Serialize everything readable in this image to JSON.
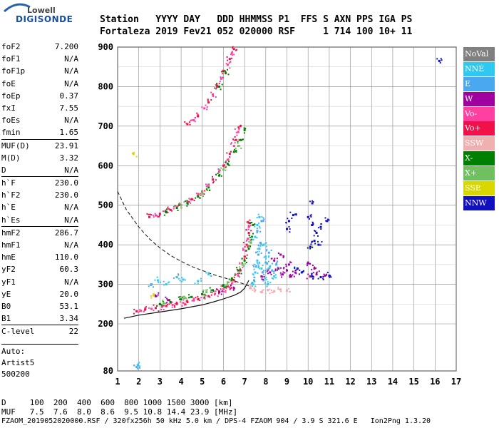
{
  "logo": {
    "line1": "Lowell",
    "line2": "DIGISONDE"
  },
  "header": {
    "row1": "Station   YYYY DAY   DDD HHMMSS P1  FFS S AXN PPS IGA PS",
    "row2": "Fortaleza 2019 Fev21 052 020000 RSF     1 714 100 10+ 11"
  },
  "params": [
    {
      "name": "foF2",
      "value": "7.200"
    },
    {
      "name": "foF1",
      "value": "N/A"
    },
    {
      "name": "foF1p",
      "value": "N/A"
    },
    {
      "name": "foE",
      "value": "N/A"
    },
    {
      "name": "foEp",
      "value": "0.37"
    },
    {
      "name": "fxI",
      "value": "7.55"
    },
    {
      "name": "foEs",
      "value": "N/A"
    },
    {
      "name": "fmin",
      "value": "1.65"
    },
    {
      "name": "MUF(D)",
      "value": "23.91",
      "sep": true
    },
    {
      "name": "M(D)",
      "value": "3.32"
    },
    {
      "name": "D",
      "value": "N/A"
    },
    {
      "name": "h`F",
      "value": "230.0",
      "sep": true
    },
    {
      "name": "h`F2",
      "value": "230.0"
    },
    {
      "name": "h`E",
      "value": "N/A"
    },
    {
      "name": "h`Es",
      "value": "N/A"
    },
    {
      "name": "hmF2",
      "value": "286.7",
      "sep": true
    },
    {
      "name": "hmF1",
      "value": "N/A"
    },
    {
      "name": "hmE",
      "value": "110.0"
    },
    {
      "name": "yF2",
      "value": "60.3"
    },
    {
      "name": "yF1",
      "value": "N/A"
    },
    {
      "name": "yE",
      "value": "20.0"
    },
    {
      "name": "B0",
      "value": "53.1"
    },
    {
      "name": "B1",
      "value": "3.34"
    },
    {
      "name": "C-level",
      "value": "22",
      "sep": true
    }
  ],
  "auto": {
    "label": "Auto:",
    "artist": "Artist5",
    "version": "500200"
  },
  "legend": [
    {
      "label": "NoVal",
      "color": "#808080"
    },
    {
      "label": "NNE",
      "color": "#2ec9f0"
    },
    {
      "label": "E",
      "color": "#4aa8f0"
    },
    {
      "label": "W",
      "color": "#a000a0"
    },
    {
      "label": "Vo-",
      "color": "#ff40a0"
    },
    {
      "label": "Vo+",
      "color": "#f0104a"
    },
    {
      "label": "SSW",
      "color": "#f0b0b0"
    },
    {
      "label": "X-",
      "color": "#008000"
    },
    {
      "label": "X+",
      "color": "#70c060"
    },
    {
      "label": "SSE",
      "color": "#d8d800"
    },
    {
      "label": "NNW",
      "color": "#1010c0"
    }
  ],
  "footer": {
    "d_row": "D     100  200  400  600  800 1000 1500 3000 [km]",
    "muf_row": "MUF   7.5  7.6  8.0  8.6  9.5 10.8 14.4 23.9 [MHz]",
    "file_row": "FZAOM_2019052020000.RSF / 320fx256h 50 kHz 5.0 km / DPS-4 FZAOM 904 / 3.9 S 321.6 E   Ion2Png 1.3.20"
  },
  "chart_data": {
    "type": "scatter",
    "xlim": [
      1,
      17
    ],
    "ylim": [
      80,
      900
    ],
    "x_ticks": [
      1,
      2,
      3,
      4,
      5,
      6,
      7,
      8,
      9,
      10,
      11,
      12,
      13,
      14,
      15,
      16,
      17
    ],
    "y_ticks": [
      80,
      200,
      300,
      400,
      500,
      600,
      700,
      800,
      900
    ],
    "grid": true,
    "legend_position": "right",
    "series": [
      {
        "name": "Vo+",
        "color": "#f0104a",
        "points": [
          [
            1.9,
            232
          ],
          [
            2.3,
            236
          ],
          [
            2.8,
            240
          ],
          [
            3.3,
            245
          ],
          [
            3.8,
            250
          ],
          [
            4.3,
            255
          ],
          [
            4.8,
            262
          ],
          [
            5.3,
            270
          ],
          [
            5.8,
            282
          ],
          [
            6.2,
            295
          ],
          [
            6.5,
            310
          ],
          [
            6.8,
            335
          ],
          [
            7.0,
            370
          ],
          [
            7.1,
            400
          ],
          [
            7.2,
            430
          ],
          [
            7.25,
            455
          ],
          [
            2.5,
            470
          ],
          [
            3.0,
            478
          ],
          [
            3.5,
            488
          ],
          [
            4.0,
            500
          ],
          [
            4.5,
            515
          ],
          [
            5.0,
            535
          ],
          [
            5.5,
            565
          ],
          [
            6.0,
            600
          ],
          [
            6.3,
            630
          ],
          [
            6.6,
            665
          ],
          [
            6.8,
            700
          ],
          [
            4.3,
            705
          ],
          [
            4.8,
            725
          ],
          [
            5.3,
            760
          ],
          [
            5.7,
            800
          ],
          [
            6.0,
            840
          ],
          [
            6.3,
            870
          ],
          [
            6.5,
            895
          ]
        ]
      },
      {
        "name": "Vo-",
        "color": "#ff40a0",
        "points": [
          [
            2.1,
            233
          ],
          [
            2.6,
            238
          ],
          [
            3.1,
            243
          ],
          [
            3.6,
            248
          ],
          [
            4.1,
            253
          ],
          [
            4.6,
            259
          ],
          [
            5.1,
            266
          ],
          [
            5.6,
            276
          ],
          [
            6.0,
            288
          ],
          [
            6.4,
            302
          ],
          [
            6.7,
            322
          ],
          [
            6.9,
            350
          ],
          [
            7.05,
            385
          ],
          [
            7.15,
            415
          ],
          [
            7.2,
            445
          ],
          [
            2.8,
            474
          ],
          [
            3.3,
            484
          ],
          [
            3.8,
            496
          ],
          [
            4.3,
            510
          ],
          [
            4.8,
            528
          ],
          [
            5.3,
            552
          ],
          [
            5.8,
            585
          ],
          [
            6.2,
            615
          ],
          [
            6.5,
            650
          ],
          [
            6.7,
            685
          ],
          [
            4.6,
            715
          ],
          [
            5.1,
            745
          ],
          [
            5.5,
            780
          ],
          [
            5.9,
            820
          ],
          [
            6.2,
            855
          ],
          [
            6.4,
            885
          ]
        ]
      },
      {
        "name": "X-",
        "color": "#008000",
        "points": [
          [
            3.0,
            250
          ],
          [
            3.5,
            255
          ],
          [
            4.0,
            262
          ],
          [
            4.5,
            268
          ],
          [
            5.0,
            275
          ],
          [
            5.5,
            285
          ],
          [
            6.0,
            298
          ],
          [
            6.4,
            315
          ],
          [
            6.7,
            335
          ],
          [
            7.0,
            360
          ],
          [
            7.2,
            390
          ],
          [
            7.35,
            420
          ],
          [
            7.4,
            450
          ],
          [
            3.3,
            482
          ],
          [
            3.8,
            493
          ],
          [
            4.3,
            505
          ],
          [
            4.8,
            522
          ],
          [
            5.3,
            545
          ],
          [
            5.8,
            575
          ],
          [
            6.2,
            605
          ],
          [
            6.5,
            635
          ],
          [
            6.8,
            665
          ],
          [
            7.0,
            690
          ],
          [
            5.8,
            800
          ],
          [
            6.1,
            835
          ]
        ]
      },
      {
        "name": "X+",
        "color": "#70c060",
        "points": [
          [
            3.2,
            252
          ],
          [
            4.2,
            265
          ],
          [
            5.2,
            280
          ],
          [
            6.2,
            305
          ],
          [
            6.9,
            350
          ],
          [
            7.3,
            405
          ],
          [
            4.0,
            500
          ],
          [
            5.0,
            530
          ],
          [
            6.0,
            590
          ],
          [
            6.7,
            650
          ]
        ]
      },
      {
        "name": "NNE",
        "color": "#2ec9f0",
        "points": [
          [
            7.4,
            300
          ],
          [
            7.5,
            330
          ],
          [
            7.6,
            360
          ],
          [
            7.7,
            390
          ],
          [
            7.5,
            420
          ],
          [
            7.8,
            340
          ],
          [
            7.9,
            310
          ],
          [
            8.0,
            370
          ],
          [
            8.2,
            345
          ],
          [
            8.4,
            320
          ],
          [
            7.6,
            450
          ],
          [
            7.7,
            470
          ],
          [
            2.9,
            310
          ],
          [
            3.3,
            300
          ],
          [
            4.1,
            312
          ],
          [
            4.8,
            308
          ],
          [
            5.3,
            325
          ],
          [
            1.95,
            95
          ],
          [
            7.9,
            400
          ],
          [
            8.1,
            300
          ]
        ]
      },
      {
        "name": "E",
        "color": "#4aa8f0",
        "points": [
          [
            7.45,
            310
          ],
          [
            7.55,
            345
          ],
          [
            7.65,
            375
          ],
          [
            7.75,
            405
          ],
          [
            7.85,
            330
          ],
          [
            8.0,
            355
          ],
          [
            8.15,
            380
          ],
          [
            8.3,
            335
          ],
          [
            8.5,
            350
          ],
          [
            7.6,
            435
          ],
          [
            7.8,
            460
          ],
          [
            2.6,
            300
          ],
          [
            3.8,
            318
          ],
          [
            1.9,
            90
          ]
        ]
      },
      {
        "name": "W",
        "color": "#a000a0",
        "points": [
          [
            7.8,
            320
          ],
          [
            8.2,
            330
          ],
          [
            8.6,
            340
          ],
          [
            8.8,
            325
          ],
          [
            9.0,
            335
          ],
          [
            9.2,
            320
          ],
          [
            9.4,
            330
          ],
          [
            8.4,
            360
          ],
          [
            8.7,
            375
          ],
          [
            9.1,
            350
          ],
          [
            10.1,
            320
          ],
          [
            10.4,
            325
          ],
          [
            10.8,
            322
          ],
          [
            10.3,
            340
          ],
          [
            10.0,
            355
          ],
          [
            6.5,
            290
          ],
          [
            5.8,
            280
          ],
          [
            2.8,
            270
          ],
          [
            3.4,
            260
          ]
        ]
      },
      {
        "name": "SSW",
        "color": "#f0b0b0",
        "points": [
          [
            7.5,
            285
          ],
          [
            7.8,
            280
          ],
          [
            8.1,
            285
          ],
          [
            8.4,
            282
          ],
          [
            8.7,
            287
          ],
          [
            9.0,
            284
          ],
          [
            7.3,
            290
          ]
        ]
      },
      {
        "name": "SSE",
        "color": "#d8d800",
        "points": [
          [
            1.75,
            630
          ],
          [
            10.1,
            393
          ],
          [
            2.7,
            272
          ]
        ]
      },
      {
        "name": "NNW",
        "color": "#1010c0",
        "points": [
          [
            10.0,
            470
          ],
          [
            10.2,
            450
          ],
          [
            10.4,
            430
          ],
          [
            10.6,
            445
          ],
          [
            10.3,
            410
          ],
          [
            10.1,
            395
          ],
          [
            10.5,
            400
          ],
          [
            10.2,
            505
          ],
          [
            10.9,
            460
          ],
          [
            9.1,
            460
          ],
          [
            9.3,
            475
          ],
          [
            9.0,
            440
          ],
          [
            10.2,
            320
          ],
          [
            10.6,
            318
          ],
          [
            11.0,
            322
          ],
          [
            16.2,
            865
          ],
          [
            9.5,
            340
          ],
          [
            9.7,
            330
          ]
        ]
      }
    ],
    "profile_solid": [
      [
        1.3,
        214
      ],
      [
        2.0,
        222
      ],
      [
        3.0,
        230
      ],
      [
        4.0,
        238
      ],
      [
        5.0,
        248
      ],
      [
        5.5,
        255
      ],
      [
        6.0,
        263
      ],
      [
        6.5,
        272
      ],
      [
        6.8,
        280
      ],
      [
        7.0,
        290
      ],
      [
        7.2,
        310
      ]
    ],
    "profile_dashed": [
      [
        1.0,
        535
      ],
      [
        1.4,
        490
      ],
      [
        2.0,
        445
      ],
      [
        2.5,
        415
      ],
      [
        3.0,
        392
      ],
      [
        3.5,
        373
      ],
      [
        4.0,
        358
      ],
      [
        4.5,
        345
      ],
      [
        5.0,
        335
      ],
      [
        5.5,
        325
      ],
      [
        6.0,
        317
      ],
      [
        6.5,
        309
      ],
      [
        6.9,
        302
      ],
      [
        7.2,
        296
      ]
    ]
  }
}
